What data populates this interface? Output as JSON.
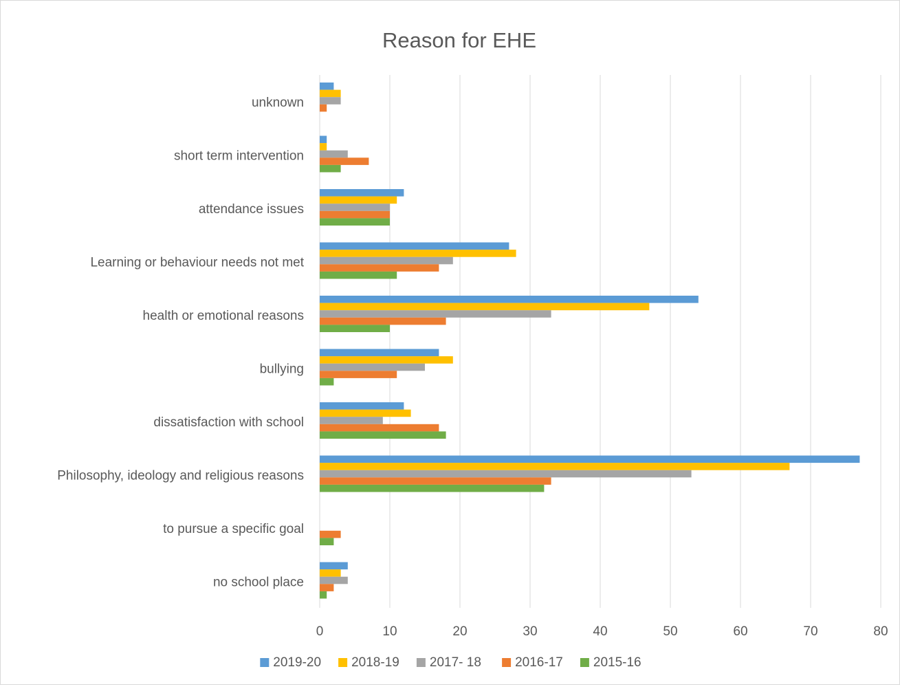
{
  "chart_data": {
    "type": "bar",
    "orientation": "horizontal",
    "title": "Reason for EHE",
    "xlabel": "",
    "ylabel": "",
    "xlim": [
      0,
      80
    ],
    "ticks": [
      0,
      10,
      20,
      30,
      40,
      50,
      60,
      70,
      80
    ],
    "grid": true,
    "legend_position": "bottom",
    "categories": [
      "unknown",
      "short term intervention",
      "attendance issues",
      "Learning or behaviour needs not met",
      "health or emotional reasons",
      "bullying",
      "dissatisfaction with school",
      "Philosophy, ideology and religious reasons",
      "to pursue a specific goal",
      "no school place"
    ],
    "series": [
      {
        "name": "2019-20",
        "color": "#5b9bd5",
        "values": [
          2,
          1,
          12,
          27,
          54,
          17,
          12,
          77,
          0,
          4
        ]
      },
      {
        "name": "2018-19",
        "color": "#ffc000",
        "values": [
          3,
          1,
          11,
          28,
          47,
          19,
          13,
          67,
          0,
          3
        ]
      },
      {
        "name": "2017- 18",
        "color": "#a5a5a5",
        "values": [
          3,
          4,
          10,
          19,
          33,
          15,
          9,
          53,
          0,
          4
        ]
      },
      {
        "name": "2016-17",
        "color": "#ed7d31",
        "values": [
          1,
          7,
          10,
          17,
          18,
          11,
          17,
          33,
          3,
          2
        ]
      },
      {
        "name": "2015-16",
        "color": "#70ad47",
        "values": [
          0,
          3,
          10,
          11,
          10,
          2,
          18,
          32,
          2,
          1
        ]
      }
    ]
  }
}
